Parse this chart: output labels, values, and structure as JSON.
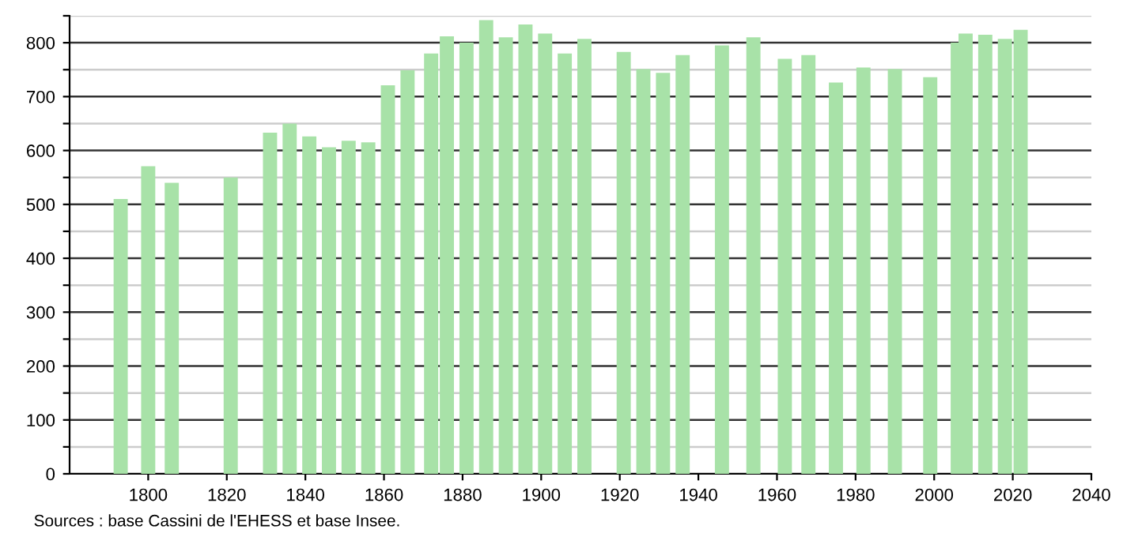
{
  "chart_data": {
    "type": "bar",
    "x": [
      1793,
      1800,
      1806,
      1821,
      1831,
      1836,
      1841,
      1846,
      1851,
      1856,
      1861,
      1866,
      1872,
      1876,
      1881,
      1886,
      1891,
      1896,
      1901,
      1906,
      1911,
      1921,
      1926,
      1931,
      1936,
      1946,
      1954,
      1962,
      1968,
      1975,
      1982,
      1990,
      1999,
      2006,
      2008,
      2013,
      2018,
      2022
    ],
    "values": [
      510,
      571,
      540,
      550,
      633,
      650,
      626,
      606,
      618,
      615,
      721,
      749,
      780,
      812,
      800,
      842,
      810,
      834,
      817,
      780,
      807,
      783,
      751,
      744,
      777,
      795,
      810,
      770,
      777,
      726,
      754,
      751,
      736,
      800,
      817,
      815,
      807,
      824
    ],
    "color": "#a8e2a8",
    "xlim": [
      1780,
      2040
    ],
    "xticks": [
      1800,
      1820,
      1840,
      1860,
      1880,
      1900,
      1920,
      1940,
      1960,
      1980,
      2000,
      2020,
      2040
    ],
    "ylim": [
      0,
      850
    ],
    "yticks": [
      0,
      {
        "value": 50,
        "label": null
      },
      100,
      {
        "value": 150,
        "label": null
      },
      200,
      {
        "value": 250,
        "label": null
      },
      300,
      {
        "value": 350,
        "label": null
      },
      400,
      {
        "value": 450,
        "label": null
      },
      500,
      {
        "value": 550,
        "label": null
      },
      600,
      {
        "value": 650,
        "label": null
      },
      700,
      {
        "value": 750,
        "label": null
      },
      800,
      {
        "value": 850,
        "label": null
      }
    ],
    "grid": "y",
    "annotations": [
      "Sources : base Cassini de l'EHESS et base Insee."
    ]
  }
}
